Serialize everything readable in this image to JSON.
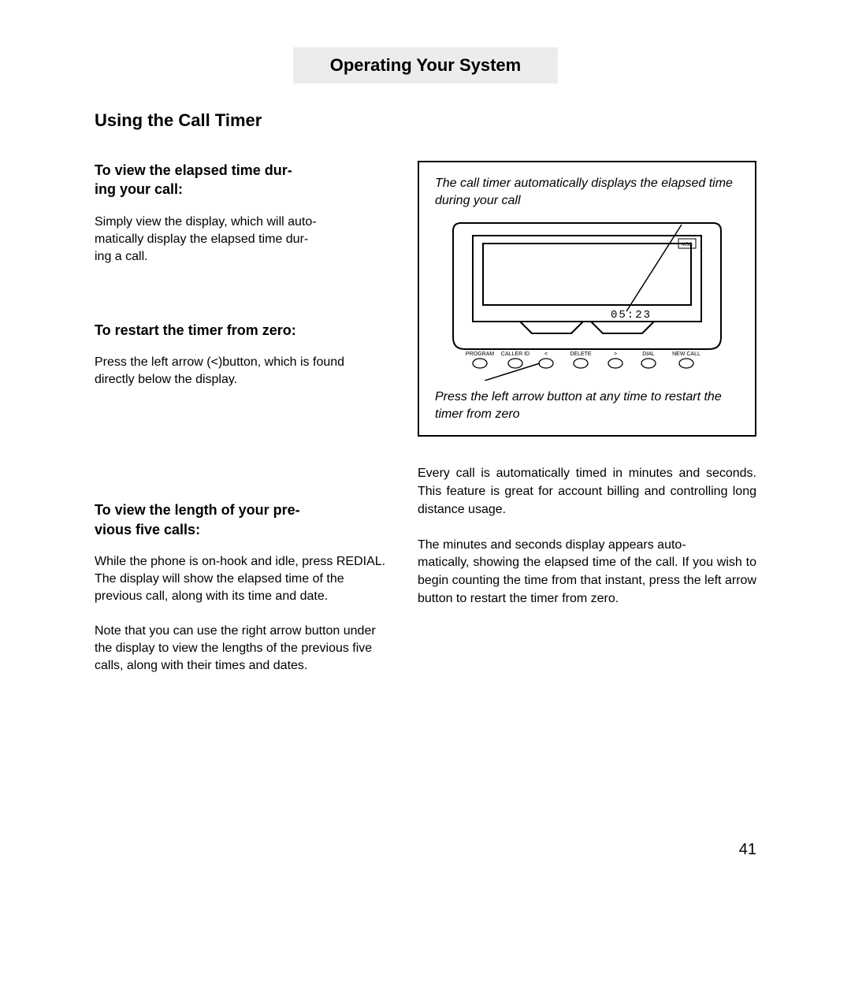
{
  "page": {
    "number": "41",
    "header": "Operating Your System",
    "section_title": "Using the Call Timer"
  },
  "left": {
    "h1": "To view the elapsed time dur-\ning your call:",
    "p1": "Simply view the display, which will auto-\nmatically display the elapsed time dur-\ning a call.",
    "h2": "To restart the timer from zero:",
    "p2": "Press the left arrow (<)button, which is found directly below the display.",
    "h3": "To view the length of your pre-\nvious five calls:",
    "p3": "While the phone is on-hook and idle, press REDIAL.  The display will show the elapsed time of the previous call, along with its time and date.",
    "p4": "Note that you can use the right arrow button under the display to view the lengths of the previous five calls, along with their times and dates."
  },
  "figure": {
    "caption_top": "The call timer automatically displays the elapsed time during your call",
    "caption_bottom": "Press the left arrow button at any time to restart the timer from zero",
    "display_value": "05:23",
    "msg_label": "MSG",
    "buttons": [
      "PROGRAM",
      "CALLER ID",
      "<",
      "DELETE",
      ">",
      "DIAL",
      "NEW CALL"
    ],
    "colors": {
      "stroke": "#000000",
      "screen_bg": "#ffffff"
    }
  },
  "right": {
    "p1": "Every call is automatically timed in minutes and seconds.  This feature is great for account billing and controlling long distance usage.",
    "p2": "The minutes and seconds display appears auto-\nmatically, showing the elapsed time of the call.  If you wish to begin counting the time from that instant, press the left arrow button to restart the timer from zero."
  }
}
